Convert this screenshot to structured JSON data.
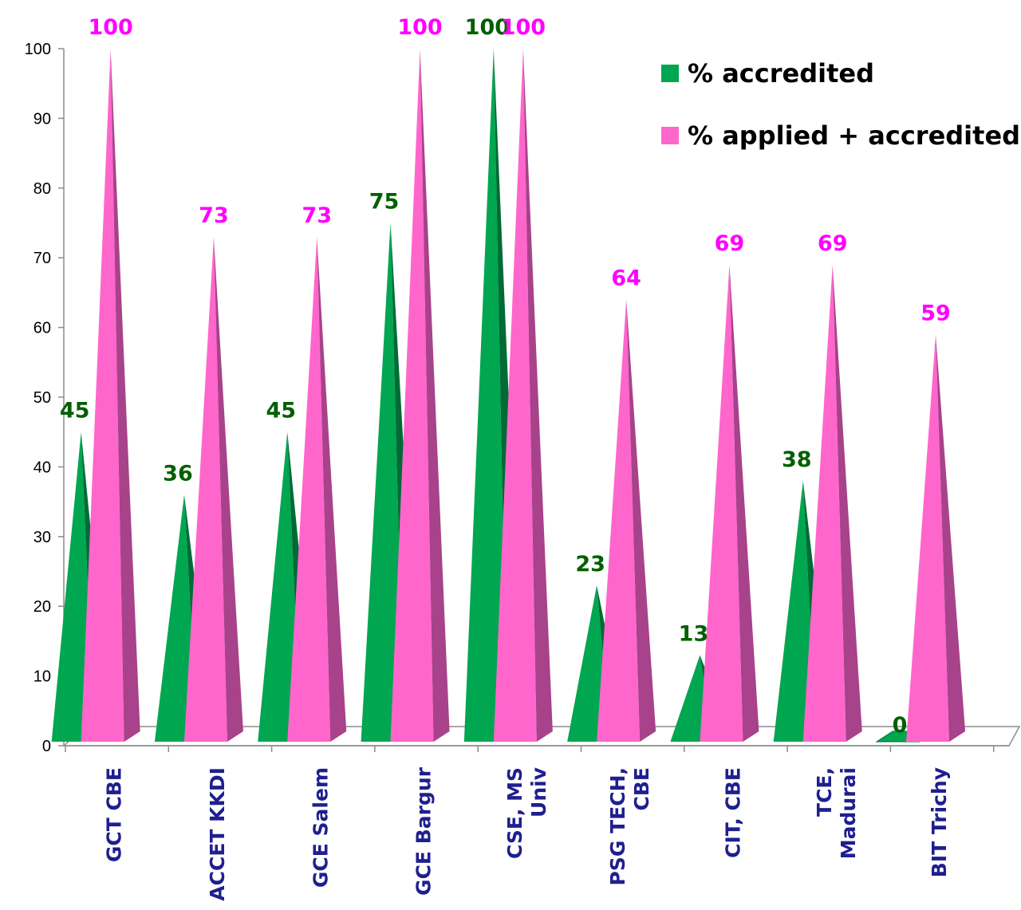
{
  "chart_data": {
    "type": "bar",
    "title": "",
    "xlabel": "",
    "ylabel": "",
    "ylim": [
      0,
      100
    ],
    "yticks": [
      0,
      10,
      20,
      30,
      40,
      50,
      60,
      70,
      80,
      90,
      100
    ],
    "grid": false,
    "legend_position": "top-right",
    "categories": [
      [
        "GCT CBE"
      ],
      [
        "ACCET KKDI"
      ],
      [
        "GCE Salem"
      ],
      [
        "GCE Bargur"
      ],
      [
        "CSE, MS",
        "Univ"
      ],
      [
        "PSG TECH,",
        "CBE"
      ],
      [
        "CIT, CBE"
      ],
      [
        "TCE,",
        "Madurai"
      ],
      [
        "BIT Trichy"
      ]
    ],
    "series": [
      {
        "name": "% accredited",
        "color": "#00a650",
        "dark": "#006b35",
        "label_color": "#006000",
        "values": [
          45,
          36,
          45,
          75,
          100,
          23,
          13,
          38,
          0
        ]
      },
      {
        "name": "% applied + accredited",
        "color": "#ff66cc",
        "dark": "#a8428a",
        "label_color": "#ff00ff",
        "values": [
          100,
          73,
          73,
          100,
          100,
          64,
          69,
          69,
          59
        ]
      }
    ]
  }
}
